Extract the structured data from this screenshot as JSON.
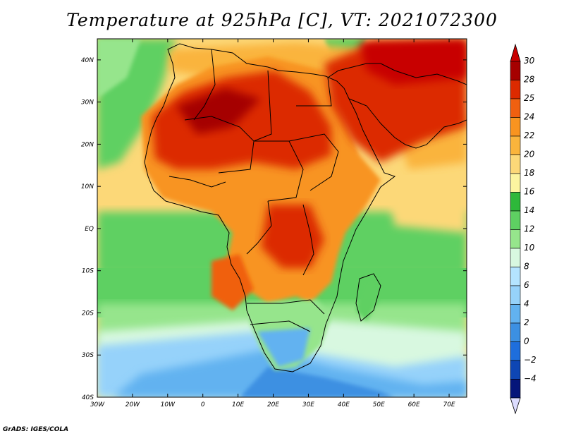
{
  "title": "Temperature at 925hPa [C], VT: 2021072300",
  "credit": "GrADS: IGES/COLA",
  "map": {
    "lon_range": [
      -30,
      75
    ],
    "lat_range": [
      -40,
      45
    ],
    "lon_ticks": [
      {
        "value": -30,
        "label": "30W"
      },
      {
        "value": -20,
        "label": "20W"
      },
      {
        "value": -10,
        "label": "10W"
      },
      {
        "value": 0,
        "label": "0"
      },
      {
        "value": 10,
        "label": "10E"
      },
      {
        "value": 20,
        "label": "20E"
      },
      {
        "value": 30,
        "label": "30E"
      },
      {
        "value": 40,
        "label": "40E"
      },
      {
        "value": 50,
        "label": "50E"
      },
      {
        "value": 60,
        "label": "60E"
      },
      {
        "value": 70,
        "label": "70E"
      }
    ],
    "lat_ticks": [
      {
        "value": 40,
        "label": "40N"
      },
      {
        "value": 30,
        "label": "30N"
      },
      {
        "value": 20,
        "label": "20N"
      },
      {
        "value": 10,
        "label": "10N"
      },
      {
        "value": 0,
        "label": "EQ"
      },
      {
        "value": -10,
        "label": "10S"
      },
      {
        "value": -20,
        "label": "20S"
      },
      {
        "value": -30,
        "label": "30S"
      },
      {
        "value": -40,
        "label": "40S"
      }
    ]
  },
  "colorbar": {
    "levels": [
      {
        "label": "30",
        "color": "#a50000"
      },
      {
        "label": "28",
        "color": "#dc2a00"
      },
      {
        "label": "25",
        "color": "#f06010"
      },
      {
        "label": "24",
        "color": "#f89420"
      },
      {
        "label": "22",
        "color": "#fab43c"
      },
      {
        "label": "20",
        "color": "#fcd878"
      },
      {
        "label": "18",
        "color": "#fcf5a0"
      },
      {
        "label": "16",
        "color": "#2eb83a"
      },
      {
        "label": "14",
        "color": "#5ed062"
      },
      {
        "label": "12",
        "color": "#96e58c"
      },
      {
        "label": "10",
        "color": "#d8f8e0"
      },
      {
        "label": "8",
        "color": "#b4e4ff"
      },
      {
        "label": "6",
        "color": "#96d2fa"
      },
      {
        "label": "4",
        "color": "#62b2f0"
      },
      {
        "label": "2",
        "color": "#3c90e2"
      },
      {
        "label": "0",
        "color": "#1e6edc"
      },
      {
        "label": "−2",
        "color": "#0e46b4"
      },
      {
        "label": "−4",
        "color": "#05157a"
      }
    ],
    "top_color": "#c80000",
    "bottom_color": "#dcdcff"
  },
  "colors": {
    "ocean_base": "#fcd878",
    "south_ocean": "#5ed062",
    "land_hot": "#dc2a00",
    "coast_line": "#000000"
  }
}
